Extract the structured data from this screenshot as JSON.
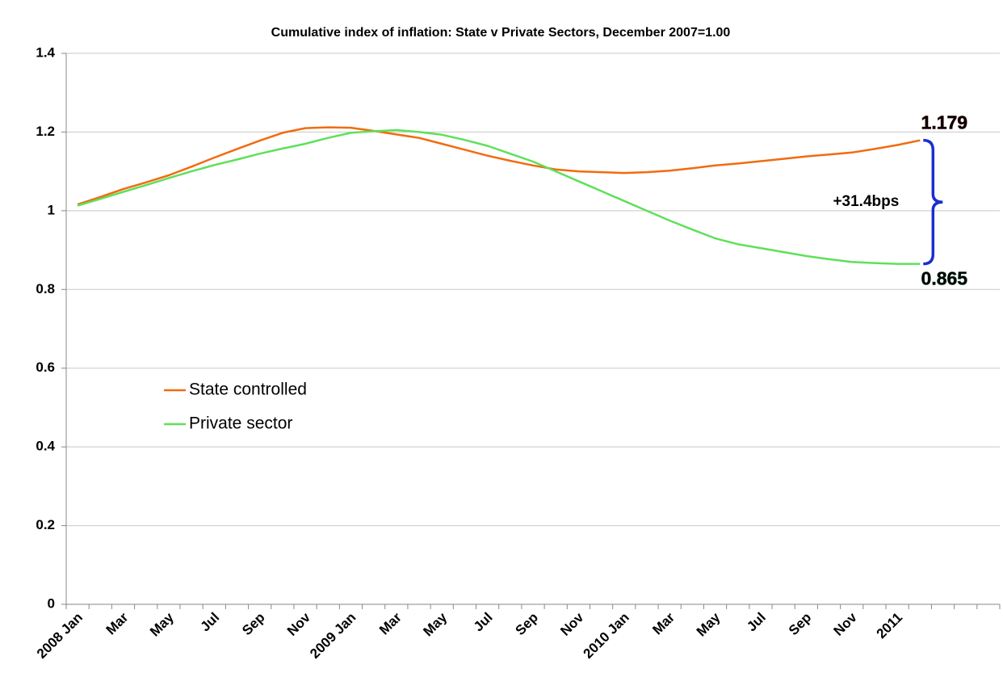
{
  "chart_data": {
    "type": "line",
    "title": "Cumulative index of inflation: State v Private Sectors, December 2007=1.00",
    "categories": [
      "2008 Jan",
      null,
      "Mar",
      null,
      "May",
      null,
      "Jul",
      null,
      "Sep",
      null,
      "Nov",
      null,
      "2009 Jan",
      null,
      "Mar",
      null,
      "May",
      null,
      "Jul",
      null,
      "Sep",
      null,
      "Nov",
      null,
      "2010 Jan",
      null,
      "Mar",
      null,
      "May",
      null,
      "Jul",
      null,
      "Sep",
      null,
      "Nov",
      null,
      "2011",
      null,
      null,
      null,
      null
    ],
    "series": [
      {
        "name": "State controlled",
        "color": "#f26b0f",
        "values": [
          1.016,
          1.035,
          1.055,
          1.072,
          1.09,
          1.112,
          1.135,
          1.157,
          1.178,
          1.198,
          1.21,
          1.212,
          1.211,
          1.203,
          1.194,
          1.185,
          1.17,
          1.155,
          1.14,
          1.127,
          1.115,
          1.105,
          1.1,
          1.098,
          1.096,
          1.098,
          1.102,
          1.108,
          1.115,
          1.12,
          1.126,
          1.132,
          1.138,
          1.143,
          1.148,
          1.157,
          1.167,
          1.179,
          null,
          null,
          null
        ]
      },
      {
        "name": "Private sector",
        "color": "#5fe05a",
        "values": [
          1.013,
          1.03,
          1.048,
          1.065,
          1.083,
          1.1,
          1.116,
          1.13,
          1.145,
          1.158,
          1.17,
          1.185,
          1.198,
          1.202,
          1.205,
          1.2,
          1.193,
          1.18,
          1.165,
          1.145,
          1.125,
          1.1,
          1.075,
          1.05,
          1.025,
          1.0,
          0.975,
          0.952,
          0.93,
          0.915,
          0.905,
          0.895,
          0.885,
          0.877,
          0.87,
          0.867,
          0.865,
          0.865,
          null,
          null,
          null
        ]
      }
    ],
    "annotations": [
      {
        "text": "1.179",
        "color": "#c00000"
      },
      {
        "text": "0.865",
        "color": "#2e8b57"
      },
      {
        "text": "+31.4bps",
        "color": "#0a1aa8"
      }
    ],
    "ylim": [
      0,
      1.4
    ],
    "yticks": [
      0,
      0.2,
      0.4,
      0.6,
      0.8,
      1,
      1.2,
      1.4
    ],
    "grid": true,
    "legend": "left"
  }
}
